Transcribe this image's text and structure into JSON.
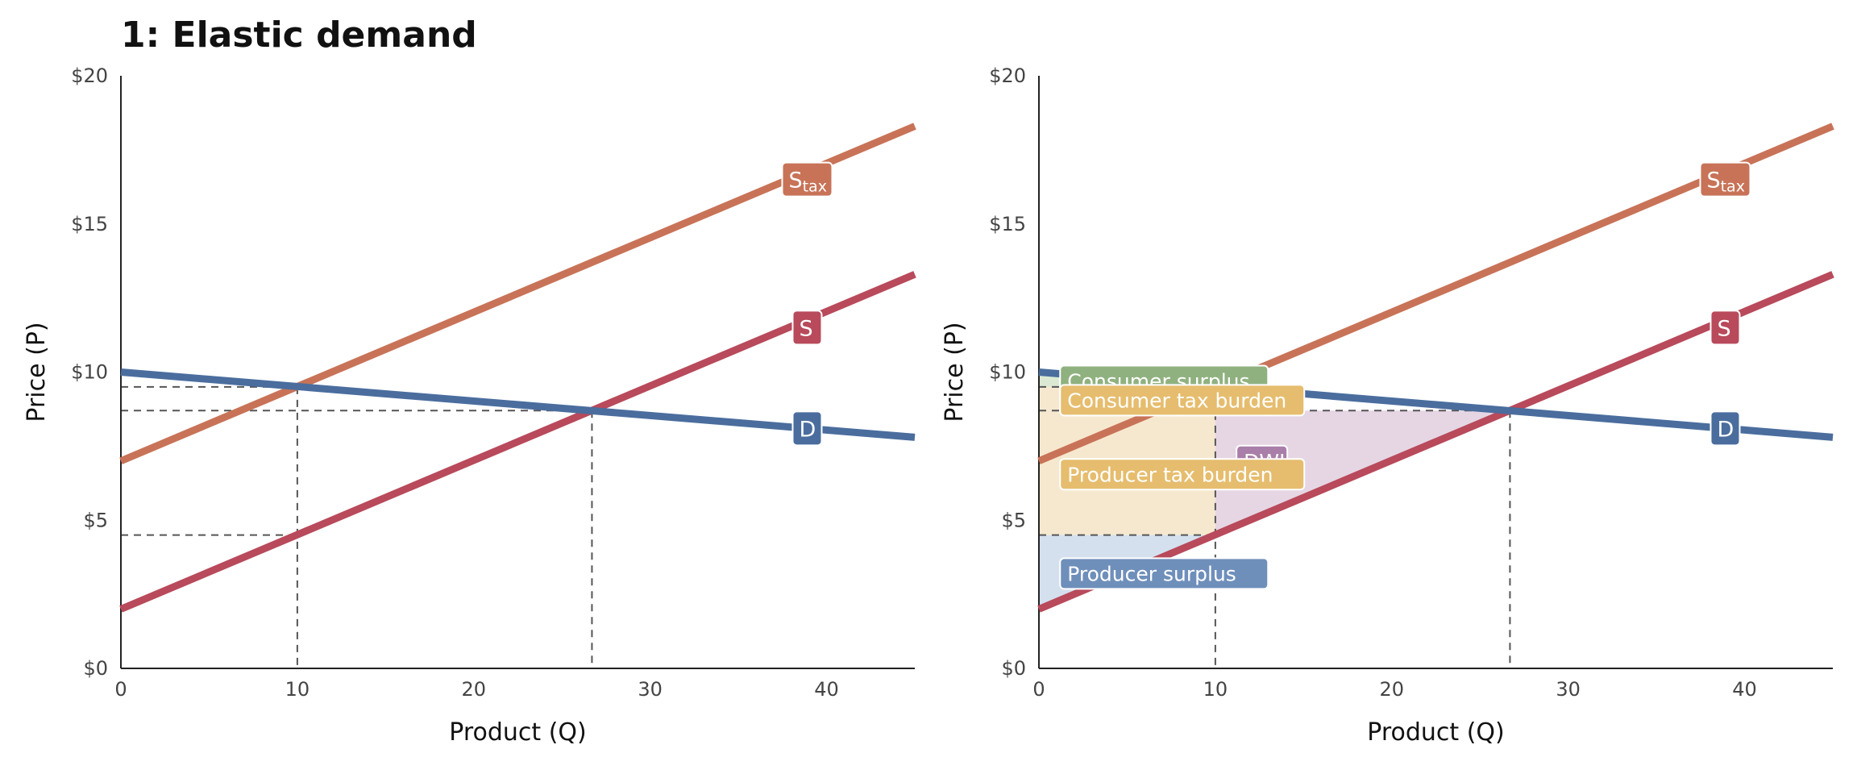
{
  "title": "1: Elastic demand",
  "chart_data": [
    {
      "type": "line",
      "xlabel": "Product (Q)",
      "ylabel": "Price (P)",
      "xlim": [
        0,
        45
      ],
      "ylim": [
        0,
        20
      ],
      "x_ticks": [
        "0",
        "10",
        "20",
        "30",
        "40"
      ],
      "y_ticks": [
        "$0",
        "$5",
        "$10",
        "$15",
        "$20"
      ],
      "grid": false,
      "colors": {
        "D": "#4a6d9e",
        "S": "#b84a5b",
        "Stax": "#c87358"
      },
      "series": [
        {
          "name": "D",
          "x": [
            0,
            45
          ],
          "y": [
            10,
            7.8
          ]
        },
        {
          "name": "S",
          "x": [
            0,
            45
          ],
          "y": [
            2,
            13.3
          ]
        },
        {
          "name": "S",
          "name_sub": "tax",
          "x": [
            0,
            45
          ],
          "y": [
            7,
            18.3
          ]
        }
      ],
      "labels": [
        {
          "text": "S",
          "sub": "tax",
          "x": 38.9,
          "y": 16.5,
          "color": "#c87358"
        },
        {
          "text": "S",
          "sub": "",
          "x": 38.9,
          "y": 11.5,
          "color": "#b84a5b"
        },
        {
          "text": "D",
          "sub": "",
          "x": 38.9,
          "y": 8.1,
          "color": "#4a6d9e"
        }
      ],
      "guides": {
        "q_tax": 10,
        "q_eq": 26.7,
        "p_consumer": 9.5,
        "p_eq": 8.7,
        "p_producer": 4.5
      }
    },
    {
      "type": "line",
      "xlabel": "Product (Q)",
      "ylabel": "Price (P)",
      "xlim": [
        0,
        45
      ],
      "ylim": [
        0,
        20
      ],
      "x_ticks": [
        "0",
        "10",
        "20",
        "30",
        "40"
      ],
      "y_ticks": [
        "$0",
        "$5",
        "$10",
        "$15",
        "$20"
      ],
      "grid": false,
      "colors": {
        "D": "#4a6d9e",
        "S": "#b84a5b",
        "Stax": "#c87358"
      },
      "series": [
        {
          "name": "D",
          "x": [
            0,
            45
          ],
          "y": [
            10,
            7.8
          ]
        },
        {
          "name": "S",
          "x": [
            0,
            45
          ],
          "y": [
            2,
            13.3
          ]
        },
        {
          "name": "S",
          "name_sub": "tax",
          "x": [
            0,
            45
          ],
          "y": [
            7,
            18.3
          ]
        }
      ],
      "labels": [
        {
          "text": "S",
          "sub": "tax",
          "x": 38.9,
          "y": 16.5,
          "color": "#c87358"
        },
        {
          "text": "S",
          "sub": "",
          "x": 38.9,
          "y": 11.5,
          "color": "#b84a5b"
        },
        {
          "text": "D",
          "sub": "",
          "x": 38.9,
          "y": 8.1,
          "color": "#4a6d9e"
        }
      ],
      "guides": {
        "q_tax": 10,
        "q_eq": 26.7,
        "p_consumer": 9.5,
        "p_eq": 8.7,
        "p_producer": 4.5
      },
      "regions": [
        {
          "name": "Consumer surplus",
          "color": "#8fb17f",
          "fill": "#dbe8d3",
          "points": [
            [
              0,
              10
            ],
            [
              10,
              9.5
            ],
            [
              0,
              9.5
            ]
          ]
        },
        {
          "name": "Consumer tax burden",
          "color": "#e6bd6e",
          "fill": "#f6e8cf",
          "points": [
            [
              0,
              9.5
            ],
            [
              10,
              9.5
            ],
            [
              10,
              8.7
            ],
            [
              0,
              8.7
            ]
          ]
        },
        {
          "name": "Producer tax burden",
          "color": "#e6bd6e",
          "fill": "#f6e8cf",
          "points": [
            [
              0,
              8.7
            ],
            [
              10,
              8.7
            ],
            [
              10,
              4.5
            ],
            [
              0,
              4.5
            ]
          ]
        },
        {
          "name": "DWL",
          "color": "#a97ea9",
          "fill": "#e6d6e4",
          "points": [
            [
              10,
              8.7
            ],
            [
              26.7,
              8.7
            ],
            [
              10,
              4.5
            ]
          ]
        },
        {
          "name": "Producer surplus",
          "color": "#6f8fbb",
          "fill": "#d5e0ee",
          "points": [
            [
              0,
              4.5
            ],
            [
              10,
              4.5
            ],
            [
              0,
              2
            ]
          ]
        }
      ],
      "region_labels": [
        {
          "text": "Consumer surplus",
          "x": 1.2,
          "y": 9.7,
          "color": "#8fb17f"
        },
        {
          "text": "Consumer tax burden",
          "x": 1.2,
          "y": 9.05,
          "color": "#e6bd6e"
        },
        {
          "text": "DWL",
          "x": 11.2,
          "y": 7.0,
          "color": "#a97ea9"
        },
        {
          "text": "Producer tax burden",
          "x": 1.2,
          "y": 6.55,
          "color": "#e6bd6e"
        },
        {
          "text": "Producer surplus",
          "x": 1.2,
          "y": 3.2,
          "color": "#6f8fbb"
        }
      ]
    }
  ]
}
